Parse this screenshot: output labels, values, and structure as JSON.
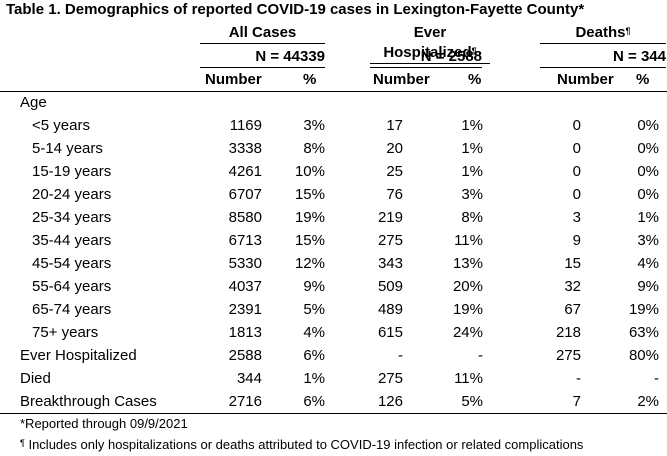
{
  "table": {
    "title": "Table 1. Demographics of reported COVID-19 cases in Lexington-Fayette County*",
    "groups": [
      {
        "label": "All Cases",
        "sup": "",
        "n": "N = 44339"
      },
      {
        "label": "Ever Hospitalized",
        "sup": "¶",
        "n": "N = 2588"
      },
      {
        "label": "Deaths",
        "sup": "¶",
        "n": "N = 344"
      }
    ],
    "col_number": "Number",
    "col_percent": "%",
    "section_age": "Age",
    "rows": [
      {
        "label": "<5 years",
        "a_n": "1169",
        "a_p": "3%",
        "h_n": "17",
        "h_p": "1%",
        "d_n": "0",
        "d_p": "0%"
      },
      {
        "label": "5-14 years",
        "a_n": "3338",
        "a_p": "8%",
        "h_n": "20",
        "h_p": "1%",
        "d_n": "0",
        "d_p": "0%"
      },
      {
        "label": "15-19 years",
        "a_n": "4261",
        "a_p": "10%",
        "h_n": "25",
        "h_p": "1%",
        "d_n": "0",
        "d_p": "0%"
      },
      {
        "label": "20-24 years",
        "a_n": "6707",
        "a_p": "15%",
        "h_n": "76",
        "h_p": "3%",
        "d_n": "0",
        "d_p": "0%"
      },
      {
        "label": "25-34 years",
        "a_n": "8580",
        "a_p": "19%",
        "h_n": "219",
        "h_p": "8%",
        "d_n": "3",
        "d_p": "1%"
      },
      {
        "label": "35-44 years",
        "a_n": "6713",
        "a_p": "15%",
        "h_n": "275",
        "h_p": "11%",
        "d_n": "9",
        "d_p": "3%"
      },
      {
        "label": "45-54 years",
        "a_n": "5330",
        "a_p": "12%",
        "h_n": "343",
        "h_p": "13%",
        "d_n": "15",
        "d_p": "4%"
      },
      {
        "label": "55-64 years",
        "a_n": "4037",
        "a_p": "9%",
        "h_n": "509",
        "h_p": "20%",
        "d_n": "32",
        "d_p": "9%"
      },
      {
        "label": "65-74 years",
        "a_n": "2391",
        "a_p": "5%",
        "h_n": "489",
        "h_p": "19%",
        "d_n": "67",
        "d_p": "19%"
      },
      {
        "label": "75+ years",
        "a_n": "1813",
        "a_p": "4%",
        "h_n": "615",
        "h_p": "24%",
        "d_n": "218",
        "d_p": "63%"
      }
    ],
    "summary_rows": [
      {
        "label": "Ever Hospitalized",
        "a_n": "2588",
        "a_p": "6%",
        "h_n": "-",
        "h_p": "-",
        "d_n": "275",
        "d_p": "80%"
      },
      {
        "label": "Died",
        "a_n": "344",
        "a_p": "1%",
        "h_n": "275",
        "h_p": "11%",
        "d_n": "-",
        "d_p": "-"
      },
      {
        "label": "Breakthrough Cases",
        "a_n": "2716",
        "a_p": "6%",
        "h_n": "126",
        "h_p": "5%",
        "d_n": "7",
        "d_p": "2%"
      }
    ],
    "footnotes": [
      "*Reported through 09/9/2021",
      "Includes only hospitalizations or deaths attributed to COVID-19 infection or related complications"
    ],
    "footnote_mark": "¶"
  }
}
